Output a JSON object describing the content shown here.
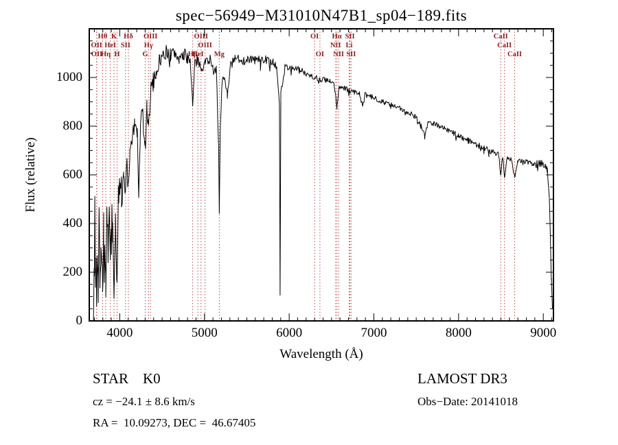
{
  "title": "spec−56949−M31010N47B1_sp04−189.fits",
  "footer": {
    "object_class": "STAR    K0",
    "survey": "LAMOST DR3",
    "cz": "cz = −24.1 ± 8.6 km/s",
    "obs_date": "Obs−Date: 20141018",
    "ra_dec": "RA =  10.09273, DEC =  46.67405"
  },
  "colors": {
    "spectrum": "#000000",
    "reference_line": "#bb4444",
    "reference_label": "#8b1a1a",
    "axis": "#000000",
    "background": "#ffffff"
  },
  "chart_data": {
    "type": "line",
    "title": "spec−56949−M31010N47B1_sp04−189.fits",
    "xlabel": "Wavelength (Å)",
    "ylabel": "Flux (relative)",
    "xlim": [
      3640,
      9120
    ],
    "ylim": [
      0,
      1200
    ],
    "xticks": [
      4000,
      5000,
      6000,
      7000,
      8000,
      9000
    ],
    "yticks": [
      0,
      200,
      400,
      600,
      800,
      1000
    ],
    "x_minor_step": 100,
    "y_minor_step": 50,
    "grid": false,
    "series_name": "flux (relative)",
    "reference_lines": [
      {
        "label": "Hθ",
        "wavelength": 3798,
        "row": 0
      },
      {
        "label": "K",
        "wavelength": 3933,
        "row": 0
      },
      {
        "label": "Hδ",
        "wavelength": 4102,
        "row": 0
      },
      {
        "label": "OIII",
        "wavelength": 4363,
        "row": 0
      },
      {
        "label": "OIII",
        "wavelength": 4959,
        "row": 0
      },
      {
        "label": "OI",
        "wavelength": 6300,
        "row": 0
      },
      {
        "label": "Hα",
        "wavelength": 6563,
        "row": 0
      },
      {
        "label": "SII",
        "wavelength": 6717,
        "row": 0
      },
      {
        "label": "CaII",
        "wavelength": 8498,
        "row": 0
      },
      {
        "label": "OII",
        "wavelength": 3727,
        "row": 1
      },
      {
        "label": "HeI",
        "wavelength": 3889,
        "row": 1
      },
      {
        "label": "SII",
        "wavelength": 4068,
        "row": 1
      },
      {
        "label": "Hγ",
        "wavelength": 4340,
        "row": 1
      },
      {
        "label": "OIII",
        "wavelength": 5007,
        "row": 1
      },
      {
        "label": "NII",
        "wavelength": 6548,
        "row": 1
      },
      {
        "label": "Li",
        "wavelength": 6708,
        "row": 1
      },
      {
        "label": "CaII",
        "wavelength": 8542,
        "row": 1
      },
      {
        "label": "OII",
        "wavelength": 3729,
        "row": 2
      },
      {
        "label": "Hη",
        "wavelength": 3835,
        "row": 2
      },
      {
        "label": "H",
        "wavelength": 3968,
        "row": 2
      },
      {
        "label": "G",
        "wavelength": 4300,
        "row": 2
      },
      {
        "label": "Hβ",
        "wavelength": 4861,
        "row": 2
      },
      {
        "label": "HeI",
        "wavelength": 4922,
        "row": 2
      },
      {
        "label": "Mg",
        "wavelength": 5175,
        "row": 2
      },
      {
        "label": "OI",
        "wavelength": 6363,
        "row": 2
      },
      {
        "label": "NII",
        "wavelength": 6584,
        "row": 2
      },
      {
        "label": "SII",
        "wavelength": 6731,
        "row": 2
      },
      {
        "label": "CaII",
        "wavelength": 8662,
        "row": 2
      }
    ],
    "spectrum_anchors": [
      [
        3690,
        40,
        30
      ],
      [
        3700,
        180,
        110
      ],
      [
        3706,
        500,
        110
      ],
      [
        3714,
        140,
        100
      ],
      [
        3722,
        300,
        100
      ],
      [
        3727,
        100,
        95
      ],
      [
        3736,
        330,
        100
      ],
      [
        3746,
        160,
        100
      ],
      [
        3756,
        430,
        100
      ],
      [
        3766,
        210,
        100
      ],
      [
        3778,
        380,
        95
      ],
      [
        3790,
        240,
        90
      ],
      [
        3798,
        150,
        85
      ],
      [
        3810,
        370,
        90
      ],
      [
        3822,
        280,
        85
      ],
      [
        3835,
        160,
        80
      ],
      [
        3848,
        390,
        85
      ],
      [
        3862,
        300,
        80
      ],
      [
        3876,
        430,
        75
      ],
      [
        3889,
        260,
        70
      ],
      [
        3902,
        440,
        70
      ],
      [
        3916,
        390,
        60
      ],
      [
        3933,
        90,
        40
      ],
      [
        3950,
        440,
        60
      ],
      [
        3968,
        130,
        40
      ],
      [
        3984,
        500,
        60
      ],
      [
        4000,
        560,
        65
      ],
      [
        4020,
        600,
        65
      ],
      [
        4045,
        640,
        65
      ],
      [
        4068,
        500,
        55
      ],
      [
        4085,
        660,
        60
      ],
      [
        4102,
        540,
        50
      ],
      [
        4120,
        710,
        60
      ],
      [
        4145,
        750,
        60
      ],
      [
        4175,
        780,
        58
      ],
      [
        4205,
        800,
        55
      ],
      [
        4226,
        510,
        40
      ],
      [
        4245,
        830,
        52
      ],
      [
        4270,
        850,
        50
      ],
      [
        4300,
        700,
        40
      ],
      [
        4320,
        870,
        45
      ],
      [
        4340,
        780,
        40
      ],
      [
        4363,
        940,
        40
      ],
      [
        4395,
        980,
        40
      ],
      [
        4430,
        1030,
        38
      ],
      [
        4470,
        1070,
        34
      ],
      [
        4510,
        1090,
        32
      ],
      [
        4555,
        1110,
        30
      ],
      [
        4600,
        1090,
        32
      ],
      [
        4650,
        1100,
        32
      ],
      [
        4700,
        1080,
        30
      ],
      [
        4750,
        1090,
        30
      ],
      [
        4800,
        1085,
        28
      ],
      [
        4835,
        1065,
        26
      ],
      [
        4861,
        880,
        18
      ],
      [
        4885,
        1055,
        26
      ],
      [
        4920,
        1070,
        26
      ],
      [
        4959,
        1045,
        24
      ],
      [
        5007,
        1060,
        24
      ],
      [
        5050,
        1080,
        24
      ],
      [
        5100,
        1055,
        24
      ],
      [
        5140,
        1035,
        22
      ],
      [
        5167,
        700,
        14
      ],
      [
        5175,
        445,
        10
      ],
      [
        5186,
        780,
        14
      ],
      [
        5215,
        1035,
        24
      ],
      [
        5270,
        920,
        18
      ],
      [
        5310,
        1055,
        22
      ],
      [
        5360,
        1070,
        22
      ],
      [
        5410,
        1080,
        22
      ],
      [
        5460,
        1070,
        20
      ],
      [
        5510,
        1080,
        20
      ],
      [
        5560,
        1070,
        20
      ],
      [
        5610,
        1075,
        20
      ],
      [
        5660,
        1070,
        19
      ],
      [
        5710,
        1075,
        18
      ],
      [
        5760,
        1068,
        18
      ],
      [
        5810,
        1060,
        17
      ],
      [
        5855,
        1045,
        15
      ],
      [
        5885,
        890,
        10
      ],
      [
        5893,
        120,
        6
      ],
      [
        5902,
        940,
        12
      ],
      [
        5950,
        1040,
        15
      ],
      [
        6000,
        1045,
        15
      ],
      [
        6060,
        1038,
        14
      ],
      [
        6120,
        1030,
        14
      ],
      [
        6180,
        1022,
        14
      ],
      [
        6240,
        1012,
        14
      ],
      [
        6300,
        1000,
        13
      ],
      [
        6363,
        995,
        13
      ],
      [
        6420,
        990,
        13
      ],
      [
        6480,
        983,
        12
      ],
      [
        6530,
        972,
        12
      ],
      [
        6563,
        880,
        9
      ],
      [
        6590,
        962,
        12
      ],
      [
        6650,
        955,
        12
      ],
      [
        6717,
        945,
        11
      ],
      [
        6770,
        940,
        11
      ],
      [
        6830,
        935,
        11
      ],
      [
        6867,
        880,
        9
      ],
      [
        6895,
        928,
        11
      ],
      [
        6950,
        922,
        11
      ],
      [
        7010,
        915,
        11
      ],
      [
        7070,
        906,
        11
      ],
      [
        7130,
        898,
        11
      ],
      [
        7190,
        888,
        11
      ],
      [
        7250,
        880,
        11
      ],
      [
        7310,
        872,
        11
      ],
      [
        7370,
        862,
        11
      ],
      [
        7430,
        853,
        11
      ],
      [
        7490,
        843,
        11
      ],
      [
        7555,
        805,
        10
      ],
      [
        7600,
        762,
        10
      ],
      [
        7640,
        815,
        11
      ],
      [
        7700,
        812,
        11
      ],
      [
        7760,
        804,
        11
      ],
      [
        7820,
        793,
        11
      ],
      [
        7880,
        782,
        11
      ],
      [
        7940,
        771,
        11
      ],
      [
        8000,
        762,
        11
      ],
      [
        8060,
        751,
        12
      ],
      [
        8120,
        742,
        12
      ],
      [
        8180,
        731,
        12
      ],
      [
        8240,
        720,
        13
      ],
      [
        8300,
        711,
        13
      ],
      [
        8360,
        701,
        13
      ],
      [
        8420,
        694,
        13
      ],
      [
        8470,
        688,
        12
      ],
      [
        8498,
        602,
        8
      ],
      [
        8521,
        678,
        11
      ],
      [
        8542,
        585,
        8
      ],
      [
        8572,
        670,
        11
      ],
      [
        8620,
        664,
        11
      ],
      [
        8662,
        592,
        8
      ],
      [
        8700,
        660,
        13
      ],
      [
        8760,
        653,
        14
      ],
      [
        8820,
        650,
        15
      ],
      [
        8880,
        646,
        15
      ],
      [
        8940,
        650,
        15
      ],
      [
        9000,
        645,
        15
      ],
      [
        9045,
        635,
        15
      ],
      [
        9075,
        480,
        18
      ],
      [
        9095,
        180,
        15
      ],
      [
        9108,
        45,
        8
      ]
    ]
  }
}
